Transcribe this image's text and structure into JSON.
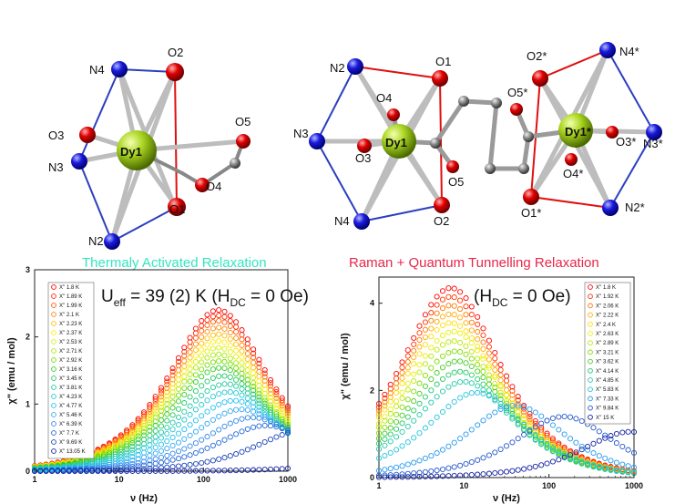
{
  "molecule_left": {
    "atoms": [
      "Dy1",
      "O1",
      "O2",
      "O3",
      "O4",
      "O5",
      "N2",
      "N3",
      "N4"
    ]
  },
  "molecule_right": {
    "atoms": [
      "Dy1",
      "O1",
      "O2",
      "O3",
      "O4",
      "O5",
      "N2",
      "N3",
      "N4",
      "Dy1*",
      "O1*",
      "O2*",
      "O3*",
      "O4*",
      "O5*",
      "N2*",
      "N3*",
      "N4*"
    ]
  },
  "colors": {
    "dy": "#9ccc20",
    "o": "#e00000",
    "n": "#1a1adc",
    "c": "#8a8a8a",
    "n_bond": "#2b3fbf",
    "o_bond": "#e01010"
  },
  "chart_data": [
    {
      "type": "scatter",
      "title": "Thermaly Activated Relaxation",
      "annotation_main": "U",
      "annotation_sub": "eff",
      "annotation_rest": " = 39 (2) K (H",
      "annotation_sub2": "DC",
      "annotation_end": " = 0 Oe)",
      "xlabel": "ν (Hz)",
      "ylabel": "χ\" (emu / mol)",
      "xscale": "log",
      "xlim": [
        1,
        1000
      ],
      "ylim": [
        0,
        3
      ],
      "xticks": [
        "1",
        "10",
        "100",
        "1000"
      ],
      "yticks": [
        "0",
        "1",
        "2",
        "3"
      ],
      "legend_placement": "top-left",
      "series": [
        {
          "name": "X'' 1.8 K",
          "peak_x": 150,
          "peak_y": 2.4,
          "color": "#ff0000"
        },
        {
          "name": "X'' 1.89 K",
          "peak_x": 150,
          "peak_y": 2.32,
          "color": "#ff2200"
        },
        {
          "name": "X'' 1.99 K",
          "peak_x": 150,
          "peak_y": 2.24,
          "color": "#ff5500"
        },
        {
          "name": "X'' 2.1 K",
          "peak_x": 150,
          "peak_y": 2.14,
          "color": "#ff8800"
        },
        {
          "name": "X'' 2.23 K",
          "peak_x": 150,
          "peak_y": 2.04,
          "color": "#ffbb00"
        },
        {
          "name": "X'' 2.37 K",
          "peak_x": 150,
          "peak_y": 1.94,
          "color": "#ffee00"
        },
        {
          "name": "X'' 2.53 K",
          "peak_x": 150,
          "peak_y": 1.84,
          "color": "#d8f000"
        },
        {
          "name": "X'' 2.71 K",
          "peak_x": 150,
          "peak_y": 1.74,
          "color": "#a8e800"
        },
        {
          "name": "X'' 2.92 K",
          "peak_x": 155,
          "peak_y": 1.64,
          "color": "#70dd00"
        },
        {
          "name": "X'' 3.16 K",
          "peak_x": 160,
          "peak_y": 1.54,
          "color": "#33cc22"
        },
        {
          "name": "X'' 3.45 K",
          "peak_x": 170,
          "peak_y": 1.42,
          "color": "#22c866"
        },
        {
          "name": "X'' 3.81 K",
          "peak_x": 185,
          "peak_y": 1.3,
          "color": "#22c8a0"
        },
        {
          "name": "X'' 4.23 K",
          "peak_x": 200,
          "peak_y": 1.18,
          "color": "#22c8d0"
        },
        {
          "name": "X'' 4.77 K",
          "peak_x": 230,
          "peak_y": 1.05,
          "color": "#22c0ee"
        },
        {
          "name": "X'' 5.46 K",
          "peak_x": 280,
          "peak_y": 0.92,
          "color": "#33a8f0"
        },
        {
          "name": "X'' 6.39 K",
          "peak_x": 380,
          "peak_y": 0.8,
          "color": "#3388e8"
        },
        {
          "name": "X'' 7.7 K",
          "peak_x": 550,
          "peak_y": 0.68,
          "color": "#2266d8"
        },
        {
          "name": "X'' 9.69 K",
          "peak_x": 1500,
          "peak_y": 0.6,
          "color": "#1840b8"
        },
        {
          "name": "X'' 13.05 K",
          "peak_x": 50000,
          "peak_y": 0.5,
          "color": "#1020a0"
        }
      ]
    },
    {
      "type": "scatter",
      "title": "Raman + Quantum Tunnelling Relaxation",
      "annotation_main": "(H",
      "annotation_sub": "DC",
      "annotation_rest": " = 0 Oe)",
      "xlabel": "ν (Hz)",
      "ylabel": "χ\" (emu / mol)",
      "xscale": "log",
      "xlim": [
        1,
        1000
      ],
      "ylim": [
        0,
        4.6
      ],
      "xticks": [
        "1",
        "10",
        "100",
        "1000"
      ],
      "yticks": [
        "0",
        "2",
        "4"
      ],
      "legend_placement": "top-right",
      "series": [
        {
          "name": "X'' 1.8 K",
          "peak_x": 7,
          "peak_y": 4.35,
          "color": "#ff0000"
        },
        {
          "name": "X'' 1.92 K",
          "peak_x": 7,
          "peak_y": 4.15,
          "color": "#ff3300"
        },
        {
          "name": "X'' 2.06 K",
          "peak_x": 7,
          "peak_y": 3.95,
          "color": "#ff7700"
        },
        {
          "name": "X'' 2.22 K",
          "peak_x": 7,
          "peak_y": 3.75,
          "color": "#ffaa00"
        },
        {
          "name": "X'' 2.4 K",
          "peak_x": 7,
          "peak_y": 3.55,
          "color": "#ffdd00"
        },
        {
          "name": "X'' 2.63 K",
          "peak_x": 7.5,
          "peak_y": 3.35,
          "color": "#e8f000"
        },
        {
          "name": "X'' 2.89 K",
          "peak_x": 7.5,
          "peak_y": 3.13,
          "color": "#b8e800"
        },
        {
          "name": "X'' 3.21 K",
          "peak_x": 8,
          "peak_y": 2.9,
          "color": "#80dd00"
        },
        {
          "name": "X'' 3.62 K",
          "peak_x": 8.5,
          "peak_y": 2.67,
          "color": "#44cc22"
        },
        {
          "name": "X'' 4.14 K",
          "peak_x": 9,
          "peak_y": 2.43,
          "color": "#22c866"
        },
        {
          "name": "X'' 4.85 K",
          "peak_x": 10,
          "peak_y": 2.2,
          "color": "#22c8a8"
        },
        {
          "name": "X'' 5.83 K",
          "peak_x": 14,
          "peak_y": 1.95,
          "color": "#22c4dd"
        },
        {
          "name": "X'' 7.33 K",
          "peak_x": 40,
          "peak_y": 1.65,
          "color": "#2299ee"
        },
        {
          "name": "X'' 9.84 K",
          "peak_x": 150,
          "peak_y": 1.4,
          "color": "#2255cc"
        },
        {
          "name": "X'' 15 K",
          "peak_x": 900,
          "peak_y": 1.05,
          "color": "#1020a0"
        }
      ]
    }
  ]
}
